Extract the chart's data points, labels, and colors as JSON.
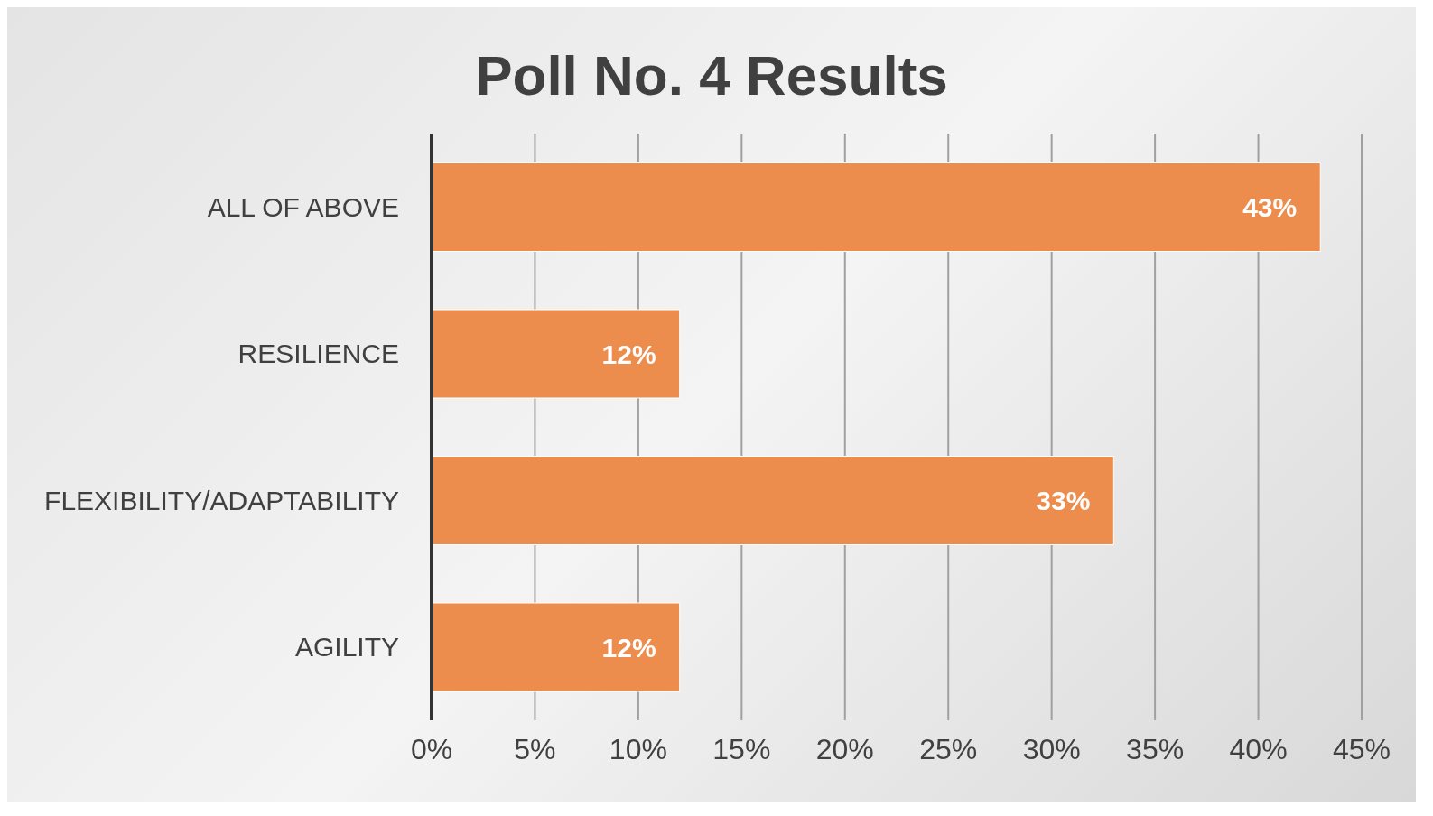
{
  "chart_data": {
    "type": "bar",
    "title": "Poll No. 4 Results",
    "orientation": "horizontal",
    "categories": [
      "ALL OF ABOVE",
      "RESILIENCE",
      "FLEXIBILITY/ADAPTABILITY",
      "AGILITY"
    ],
    "values": [
      43,
      12,
      33,
      12
    ],
    "color": "#ed8d4d",
    "value_labels": [
      "43%",
      "12%",
      "33%",
      "12%"
    ],
    "xlim": [
      0,
      45
    ],
    "xticks": [
      {
        "value": 0,
        "label": "0%"
      },
      {
        "value": 5,
        "label": "5%"
      },
      {
        "value": 10,
        "label": "10%"
      },
      {
        "value": 15,
        "label": "15%"
      },
      {
        "value": 20,
        "label": "20%"
      },
      {
        "value": 25,
        "label": "25%"
      },
      {
        "value": 30,
        "label": "30%"
      },
      {
        "value": 35,
        "label": "35%"
      },
      {
        "value": 40,
        "label": "40%"
      },
      {
        "value": 45,
        "label": "45%"
      }
    ],
    "grid": "x"
  }
}
